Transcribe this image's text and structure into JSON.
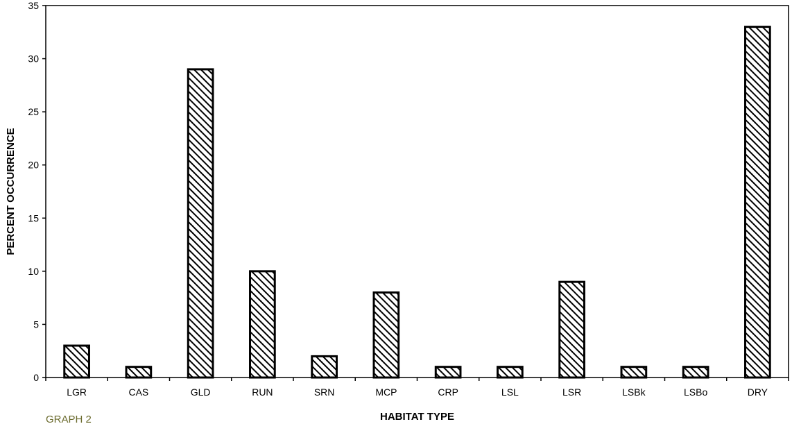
{
  "chart_data": {
    "type": "bar",
    "caption": "GRAPH 2",
    "xlabel": "HABITAT TYPE",
    "ylabel": "PERCENT OCCURRENCE",
    "categories": [
      "LGR",
      "CAS",
      "GLD",
      "RUN",
      "SRN",
      "MCP",
      "CRP",
      "LSL",
      "LSR",
      "LSBk",
      "LSBo",
      "DRY"
    ],
    "values": [
      3,
      1,
      29,
      10,
      2,
      8,
      1,
      1,
      9,
      1,
      1,
      33
    ],
    "ylim": [
      0,
      35
    ],
    "yticks": [
      0,
      5,
      10,
      15,
      20,
      25,
      30,
      35
    ],
    "grid": false,
    "legend": "none",
    "bar_fill": "diagonal-hatch",
    "colors": {
      "bar_stroke": "#000000",
      "hatch": "#000000",
      "background": "#ffffff",
      "caption": "#6b6b2e"
    }
  }
}
